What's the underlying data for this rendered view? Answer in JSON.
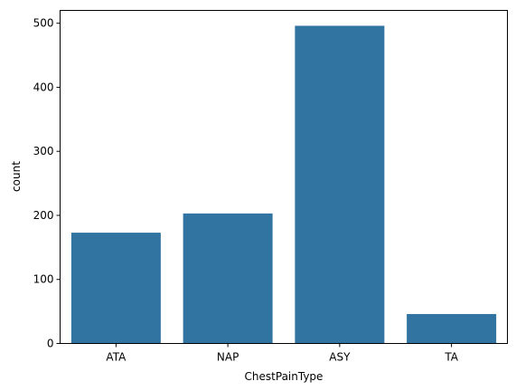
{
  "chart_data": {
    "type": "bar",
    "categories": [
      "ATA",
      "NAP",
      "ASY",
      "TA"
    ],
    "values": [
      173,
      203,
      496,
      46
    ],
    "xlabel": "ChestPainType",
    "ylabel": "count",
    "ylim": [
      0,
      520
    ],
    "yticks": [
      0,
      100,
      200,
      300,
      400,
      500
    ],
    "grid": false,
    "bar_color": "#3274a1"
  }
}
